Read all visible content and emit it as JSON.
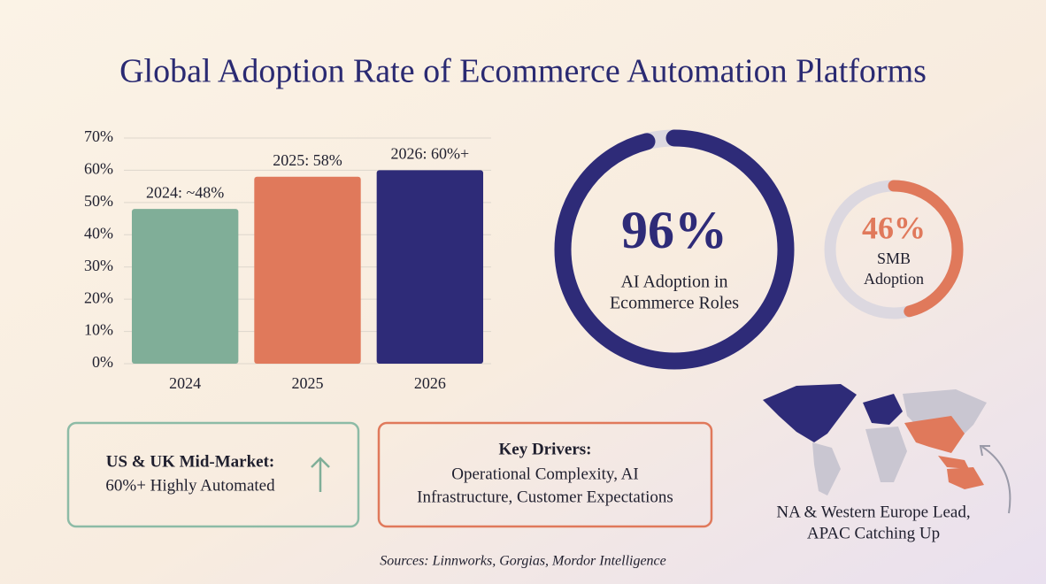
{
  "title": "Global Adoption Rate of Ecommerce Automation Platforms",
  "chart_data": [
    {
      "type": "bar",
      "categories": [
        "2024",
        "2025",
        "2026"
      ],
      "values": [
        48,
        58,
        60
      ],
      "value_labels": [
        "2024: ~48%",
        "2025: 58%",
        "2026: 60%+"
      ],
      "colors": [
        "#80ae98",
        "#e0795b",
        "#2e2b78"
      ],
      "ylim": [
        0,
        70
      ],
      "yticks": [
        {
          "value": 0,
          "label": "0%"
        },
        {
          "value": 10,
          "label": "10%"
        },
        {
          "value": 20,
          "label": "20%"
        },
        {
          "value": 30,
          "label": "30%"
        },
        {
          "value": 40,
          "label": "40%"
        },
        {
          "value": 50,
          "label": "50%"
        },
        {
          "value": 60,
          "label": "60%"
        },
        {
          "value": 70,
          "label": "70%"
        }
      ],
      "grid": true
    },
    {
      "type": "donut",
      "values": [
        96
      ],
      "value_labels": [
        "96%"
      ],
      "label": [
        "AI Adoption in",
        "Ecommerce Roles"
      ],
      "color": "#2e2b78"
    },
    {
      "type": "donut",
      "values": [
        46
      ],
      "value_labels": [
        "46%"
      ],
      "label": [
        "SMB",
        "Adoption"
      ],
      "color": "#e0795b"
    }
  ],
  "cards": [
    {
      "heading": "US & UK Mid-Market:",
      "lines": [
        "60%+ Highly Automated"
      ]
    },
    {
      "heading": "Key Drivers:",
      "lines": [
        "Operational Complexity, AI",
        "Infrastructure, Customer Expectations"
      ]
    }
  ],
  "map_caption": [
    "NA & Western Europe Lead,",
    "APAC Catching Up"
  ],
  "sources": "Sources: Linnworks, Gorgias, Mordor Intelligence"
}
